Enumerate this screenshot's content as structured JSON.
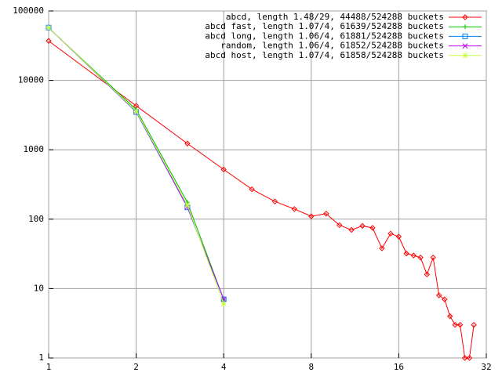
{
  "chart_data": {
    "type": "line",
    "xscale": "log2",
    "yscale": "log10",
    "grid": true,
    "legend": "top-right",
    "xlim": [
      1,
      32
    ],
    "xticks": [
      1,
      2,
      4,
      8,
      16,
      32
    ],
    "ylim": [
      1,
      100000
    ],
    "yticks": [
      1,
      10,
      100,
      1000,
      10000,
      100000
    ],
    "series": [
      {
        "name": "abcd, length 1.48/29, 44488/524288 buckets",
        "color": "#ff0000",
        "marker": "diamond",
        "x": [
          1,
          2,
          3,
          4,
          5,
          6,
          7,
          8,
          9,
          10,
          11,
          12,
          13,
          14,
          15,
          16,
          17,
          18,
          19,
          20,
          21,
          22,
          23,
          24,
          25,
          26,
          27,
          28,
          29
        ],
        "values": [
          37000,
          4300,
          1230,
          520,
          270,
          180,
          140,
          110,
          120,
          82,
          70,
          80,
          75,
          38,
          62,
          56,
          32,
          30,
          28,
          16,
          28,
          8,
          7,
          4,
          3,
          3,
          1,
          1,
          3
        ]
      },
      {
        "name": "abcd fast, length 1.07/4, 61639/524288 buckets",
        "color": "#00c000",
        "marker": "plus",
        "x": [
          1,
          2,
          3,
          4
        ],
        "values": [
          57000,
          3800,
          175,
          7
        ]
      },
      {
        "name": "abcd long, length 1.06/4, 61881/524288 buckets",
        "color": "#0080ff",
        "marker": "square",
        "x": [
          1,
          2,
          3,
          4
        ],
        "values": [
          57500,
          3500,
          148,
          7
        ]
      },
      {
        "name": "random, length 1.06/4, 61852/524288 buckets",
        "color": "#c000ff",
        "marker": "cross",
        "x": [
          1,
          2,
          3,
          4
        ],
        "values": [
          57200,
          3550,
          150,
          7
        ]
      },
      {
        "name": "abcd host, length 1.07/4, 61858/524288 buckets",
        "color": "#c0ff40",
        "marker": "star",
        "x": [
          1,
          2,
          3,
          4
        ],
        "values": [
          57300,
          3600,
          160,
          6
        ]
      }
    ]
  }
}
